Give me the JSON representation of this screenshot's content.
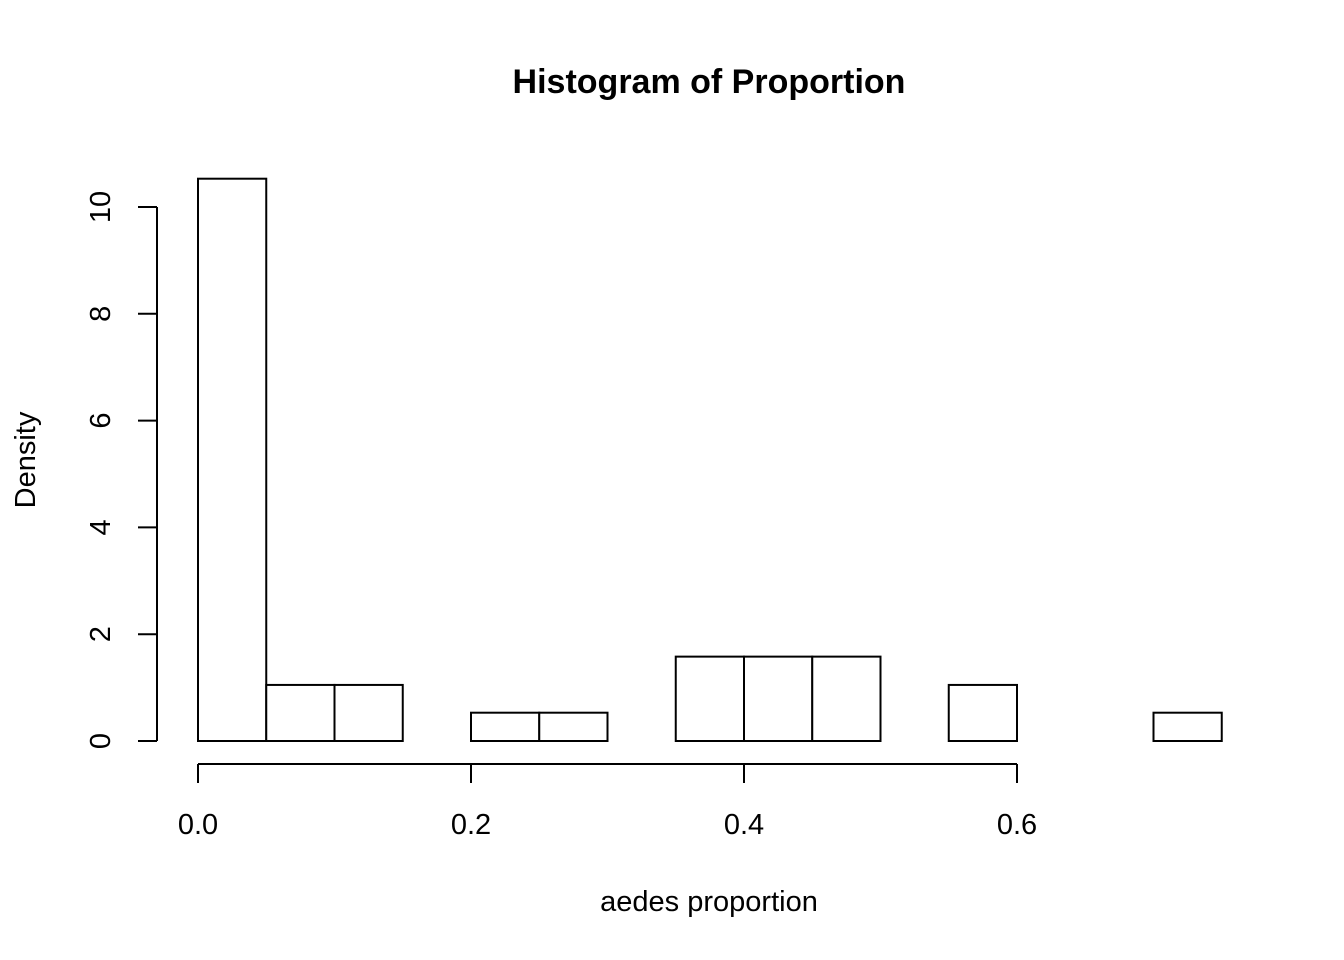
{
  "chart_data": {
    "type": "bar",
    "title": "Histogram of Proportion",
    "xlabel": "aedes proportion",
    "ylabel": "Density",
    "bin_width": 0.05,
    "bin_starts": [
      0.0,
      0.05,
      0.1,
      0.15,
      0.2,
      0.25,
      0.3,
      0.35,
      0.4,
      0.45,
      0.5,
      0.55,
      0.6,
      0.65,
      0.7
    ],
    "values": [
      10.53,
      1.05,
      1.05,
      0,
      0.53,
      0.53,
      0,
      1.58,
      1.58,
      1.58,
      0,
      1.05,
      0,
      0,
      0.53
    ],
    "x_ticks": [
      0.0,
      0.2,
      0.4,
      0.6
    ],
    "x_tick_labels": [
      "0.0",
      "0.2",
      "0.4",
      "0.6"
    ],
    "y_ticks": [
      0,
      2,
      4,
      6,
      8,
      10
    ],
    "y_tick_labels": [
      "0",
      "2",
      "4",
      "6",
      "8",
      "10"
    ],
    "xlim": [
      0.0,
      0.75
    ],
    "ylim": [
      0,
      10.53
    ],
    "bar_fill": "#ffffff",
    "bar_stroke": "#000000",
    "grid": false
  }
}
